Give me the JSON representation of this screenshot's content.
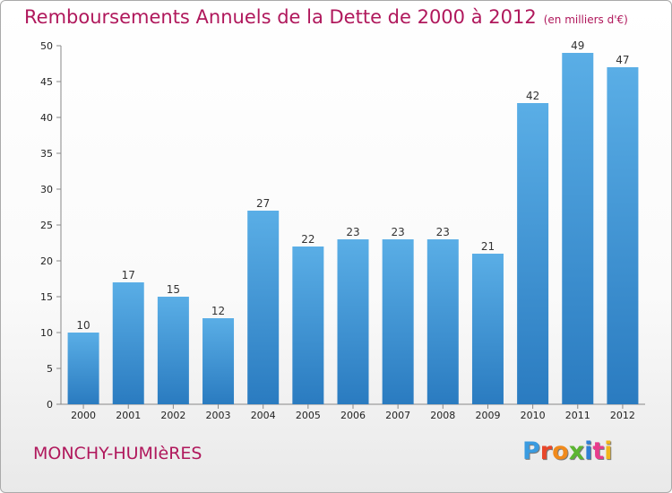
{
  "title": "Remboursements Annuels de la Dette de 2000 à 2012",
  "subtitle": "(en milliers d'€)",
  "place": "MONCHY-HUMIèRES",
  "logo": {
    "letters": [
      "P",
      "r",
      "o",
      "x",
      "i",
      "t",
      "i"
    ],
    "colors": [
      "#3a9be0",
      "#e8462a",
      "#f08a1c",
      "#5bb531",
      "#2f7fd6",
      "#e83c8c",
      "#f2b51b"
    ]
  },
  "chart_data": {
    "type": "bar",
    "categories": [
      "2000",
      "2001",
      "2002",
      "2003",
      "2004",
      "2005",
      "2006",
      "2007",
      "2008",
      "2009",
      "2010",
      "2011",
      "2012"
    ],
    "values": [
      10,
      17,
      15,
      12,
      27,
      22,
      23,
      23,
      23,
      21,
      42,
      49,
      47
    ],
    "ylim": [
      0,
      50
    ],
    "yticks": [
      0,
      5,
      10,
      15,
      20,
      25,
      30,
      35,
      40,
      45,
      50
    ],
    "grid": false,
    "bar_color": "#4ea3e0"
  }
}
